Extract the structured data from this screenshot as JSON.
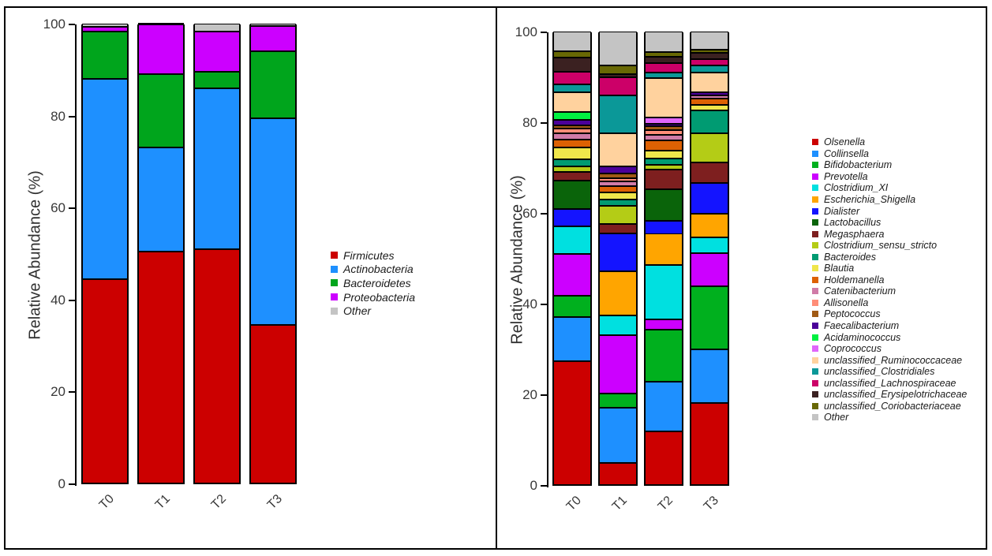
{
  "figure": {
    "description": "Two stacked-bar microbiome relative abundance charts"
  },
  "chart_data": [
    {
      "type": "bar",
      "subtype": "stacked",
      "id": "phylum",
      "title": "",
      "xlabel": "",
      "ylabel": "Relative Abundance (%)",
      "ylim": [
        0,
        100
      ],
      "y_ticks": [
        0,
        20,
        40,
        60,
        80,
        100
      ],
      "grid": false,
      "legend_position": "right",
      "categories": [
        "T0",
        "T1",
        "T2",
        "T3"
      ],
      "series": [
        {
          "name": "Firmicutes",
          "color": "#CC0000",
          "values": [
            44.5,
            50.5,
            51.0,
            34.5
          ]
        },
        {
          "name": "Actinobacteria",
          "color": "#1E90FF",
          "values": [
            43.5,
            22.5,
            35.0,
            45.0
          ]
        },
        {
          "name": "Bacteroidetes",
          "color": "#00A51C",
          "values": [
            10.3,
            16.0,
            3.5,
            14.5
          ]
        },
        {
          "name": "Proteobacteria",
          "color": "#CC00FF",
          "values": [
            1.0,
            10.8,
            8.8,
            5.5
          ]
        },
        {
          "name": "Other",
          "color": "#C4C4C4",
          "values": [
            0.7,
            0.2,
            1.7,
            0.5
          ]
        }
      ]
    },
    {
      "type": "bar",
      "subtype": "stacked",
      "id": "genus",
      "title": "",
      "xlabel": "",
      "ylabel": "Relative Abundance (%)",
      "ylim": [
        0,
        100
      ],
      "y_ticks": [
        0,
        20,
        40,
        60,
        80,
        100
      ],
      "grid": false,
      "legend_position": "right",
      "categories": [
        "T0",
        "T1",
        "T2",
        "T3"
      ],
      "series": [
        {
          "name": "Olsenella",
          "color": "#CC0000",
          "values": [
            27.4,
            4.8,
            11.8,
            18.1
          ]
        },
        {
          "name": "Collinsella",
          "color": "#1E90FF",
          "values": [
            9.6,
            12.2,
            11.0,
            11.8
          ]
        },
        {
          "name": "Bifidobacterium",
          "color": "#00B01E",
          "values": [
            4.8,
            3.2,
            11.4,
            14.0
          ]
        },
        {
          "name": "Prevotella",
          "color": "#CC00FF",
          "values": [
            9.2,
            12.8,
            2.3,
            7.2
          ]
        },
        {
          "name": "Clostridium_XI",
          "color": "#00E0E0",
          "values": [
            6.0,
            4.4,
            12.0,
            3.6
          ]
        },
        {
          "name": "Escherichia_Shigella",
          "color": "#FFA500",
          "values": [
            0,
            9.8,
            6.9,
            5.1
          ]
        },
        {
          "name": "Dialister",
          "color": "#1414FF",
          "values": [
            3.9,
            8.3,
            2.9,
            6.8
          ]
        },
        {
          "name": "Lactobacillus",
          "color": "#0A640A",
          "values": [
            6.2,
            0,
            7.0,
            0
          ]
        },
        {
          "name": "Megasphaera",
          "color": "#7E1F1F",
          "values": [
            1.9,
            2.0,
            4.2,
            4.5
          ]
        },
        {
          "name": "Clostridium_sensu_stricto",
          "color": "#B4CC16",
          "values": [
            1.3,
            4.1,
            1.2,
            6.5
          ]
        },
        {
          "name": "Bacteroides",
          "color": "#009B72",
          "values": [
            1.5,
            1.4,
            1.3,
            5.0
          ]
        },
        {
          "name": "Blautia",
          "color": "#F0E64B",
          "values": [
            2.6,
            1.6,
            1.7,
            1.2
          ]
        },
        {
          "name": "Holdemanella",
          "color": "#DD6103",
          "values": [
            1.8,
            1.3,
            2.3,
            1.5
          ]
        },
        {
          "name": "Catenibacterium",
          "color": "#D07BA8",
          "values": [
            1.4,
            1.0,
            1.3,
            0.6
          ]
        },
        {
          "name": "Allisonella",
          "color": "#FF8D78",
          "values": [
            1.1,
            0.8,
            0.9,
            0
          ]
        },
        {
          "name": "Peptococcus",
          "color": "#A05A14",
          "values": [
            0.6,
            1.0,
            1.0,
            0
          ]
        },
        {
          "name": "Faecalibacterium",
          "color": "#4B0099",
          "values": [
            1.3,
            1.5,
            0.5,
            0.8
          ]
        },
        {
          "name": "Acidaminococcus",
          "color": "#00F141",
          "values": [
            1.6,
            0,
            0,
            0
          ]
        },
        {
          "name": "Coprococcus",
          "color": "#E066FA",
          "values": [
            0,
            0,
            1.3,
            0
          ]
        },
        {
          "name": "unclassified_Ruminococcaceae",
          "color": "#FFD29E",
          "values": [
            4.5,
            7.4,
            8.7,
            4.2
          ]
        },
        {
          "name": "unclassified_Clostridiales",
          "color": "#0B9898",
          "values": [
            1.6,
            8.3,
            1.2,
            1.6
          ]
        },
        {
          "name": "unclassified_Lachnospiraceae",
          "color": "#CC0068",
          "values": [
            2.9,
            4.1,
            2.1,
            1.5
          ]
        },
        {
          "name": "unclassified_Erysipelotrichaceae",
          "color": "#3B2121",
          "values": [
            3.0,
            0.6,
            1.4,
            1.3
          ]
        },
        {
          "name": "unclassified_Coriobacteriaceae",
          "color": "#686804",
          "values": [
            1.4,
            1.9,
            1.1,
            0.7
          ]
        },
        {
          "name": "Other",
          "color": "#C4C4C4",
          "values": [
            4.4,
            7.5,
            4.5,
            4.0
          ]
        }
      ]
    }
  ]
}
